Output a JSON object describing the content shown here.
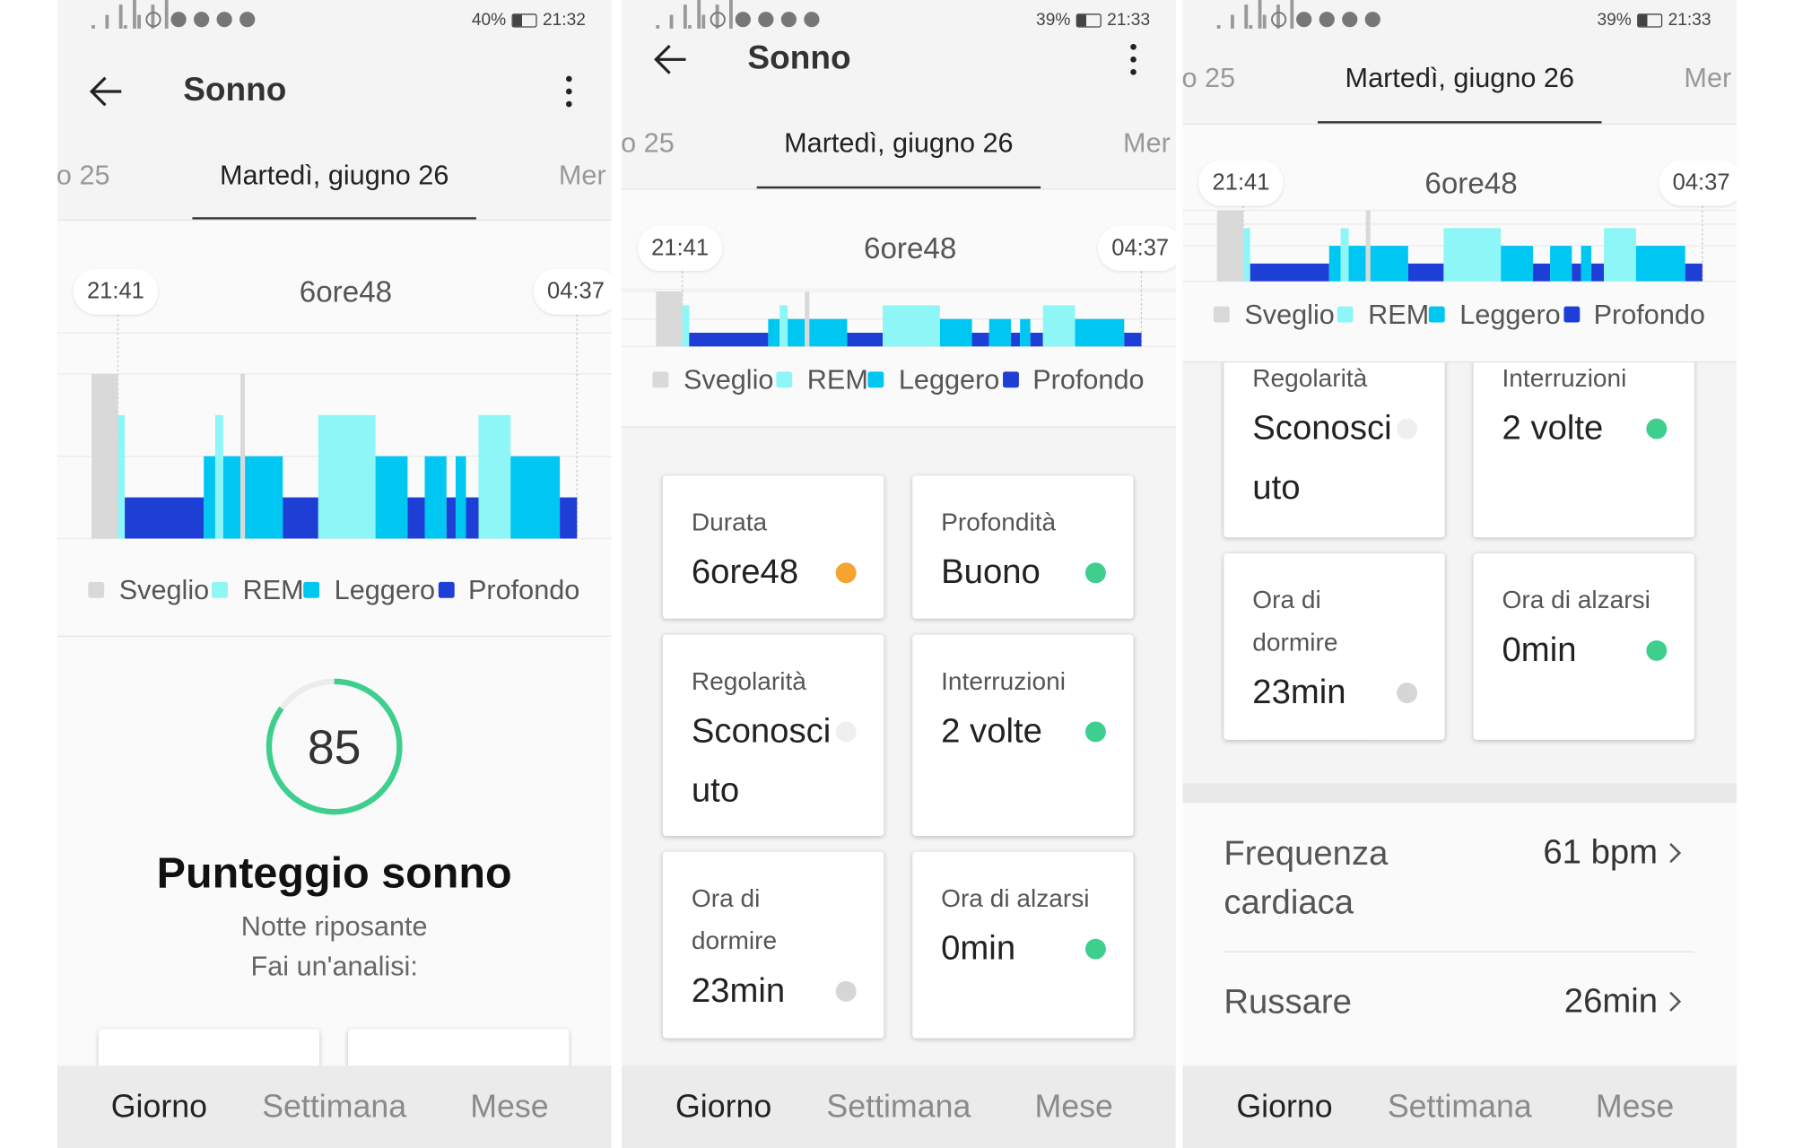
{
  "panels": [
    {
      "status": {
        "battery": "40%",
        "time": "21:32"
      },
      "header": {
        "title": "Sonno"
      },
      "tabs": {
        "prev": "o 25",
        "current": "Martedì, giugno 26",
        "next": "Mer"
      },
      "sleep_chart": {
        "start": "21:41",
        "duration": "6ore48",
        "end": "04:37"
      },
      "legend": [
        {
          "name": "Sveglio",
          "color": "#d9d9d9"
        },
        {
          "name": "REM",
          "color": "#8ef6f6"
        },
        {
          "name": "Leggero",
          "color": "#00c6f2"
        },
        {
          "name": "Profondo",
          "color": "#1e3fd6"
        }
      ],
      "score": {
        "value": 85,
        "title": "Punteggio sonno",
        "subtitle": "Notte riposante",
        "prompt": "Fai un'analisi:"
      },
      "bottom_nav": [
        "Giorno",
        "Settimana",
        "Mese"
      ]
    },
    {
      "status": {
        "battery": "39%",
        "time": "21:33"
      },
      "header": {
        "title": "Sonno"
      },
      "tabs": {
        "prev": "o 25",
        "current": "Martedì, giugno 26",
        "next": "Mer"
      },
      "sleep_chart": {
        "start": "21:41",
        "duration": "6ore48",
        "end": "04:37"
      },
      "legend": [
        {
          "name": "Sveglio",
          "color": "#d9d9d9"
        },
        {
          "name": "REM",
          "color": "#8ef6f6"
        },
        {
          "name": "Leggero",
          "color": "#00c6f2"
        },
        {
          "name": "Profondo",
          "color": "#1e3fd6"
        }
      ],
      "cards": [
        {
          "label": "Durata",
          "value": "6ore48",
          "status_color": "#f5a431"
        },
        {
          "label": "Profondità",
          "value": "Buono",
          "status_color": "#3ecf8e"
        },
        {
          "label": "Regolarità",
          "value": "Sconosciuto",
          "status_color": "#efefef"
        },
        {
          "label": "Interruzioni",
          "value": "2 volte",
          "status_color": "#3ecf8e"
        },
        {
          "label": "Ora di dormire",
          "value": "23min",
          "status_color": "#d6d6d6"
        },
        {
          "label": "Ora di alzarsi",
          "value": "0min",
          "status_color": "#3ecf8e"
        }
      ],
      "bottom_nav": [
        "Giorno",
        "Settimana",
        "Mese"
      ]
    },
    {
      "status": {
        "battery": "39%",
        "time": "21:33"
      },
      "tabs": {
        "prev": "o 25",
        "current": "Martedì, giugno 26",
        "next": "Mer"
      },
      "sleep_chart": {
        "start": "21:41",
        "duration": "6ore48",
        "end": "04:37"
      },
      "legend": [
        {
          "name": "Sveglio",
          "color": "#d9d9d9"
        },
        {
          "name": "REM",
          "color": "#8ef6f6"
        },
        {
          "name": "Leggero",
          "color": "#00c6f2"
        },
        {
          "name": "Profondo",
          "color": "#1e3fd6"
        }
      ],
      "cards": [
        {
          "label": "Regolarità",
          "value": "Sconosciuto",
          "status_color": "#efefef"
        },
        {
          "label": "Interruzioni",
          "value": "2 volte",
          "status_color": "#3ecf8e"
        },
        {
          "label": "Ora di dormire",
          "value": "23min",
          "status_color": "#d6d6d6"
        },
        {
          "label": "Ora di alzarsi",
          "value": "0min",
          "status_color": "#3ecf8e"
        }
      ],
      "metrics": [
        {
          "label": "Frequenza cardiaca",
          "value": "61 bpm"
        },
        {
          "label": "Russare",
          "value": "26min"
        }
      ],
      "bottom_nav": [
        "Giorno",
        "Settimana",
        "Mese"
      ]
    }
  ]
}
